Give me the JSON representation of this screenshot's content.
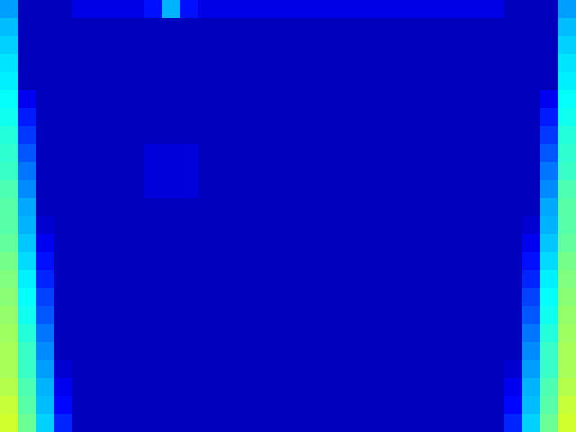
{
  "chart_data": {
    "type": "heatmap",
    "tick_labels": false,
    "zlim": [
      0,
      1
    ],
    "cells": [
      [
        0.28,
        0.06,
        0.06,
        0.06,
        0.1,
        0.1,
        0.1,
        0.1,
        0.14,
        0.3,
        0.14,
        0.1,
        0.1,
        0.1,
        0.1,
        0.1,
        0.1,
        0.1,
        0.1,
        0.1,
        0.1,
        0.1,
        0.1,
        0.1,
        0.1,
        0.1,
        0.1,
        0.1,
        0.06,
        0.06,
        0.06,
        0.28
      ],
      [
        0.31,
        0.06,
        0.06,
        0.06,
        0.06,
        0.06,
        0.06,
        0.06,
        0.06,
        0.06,
        0.06,
        0.06,
        0.06,
        0.06,
        0.06,
        0.06,
        0.06,
        0.06,
        0.06,
        0.06,
        0.06,
        0.06,
        0.06,
        0.06,
        0.06,
        0.06,
        0.06,
        0.06,
        0.06,
        0.06,
        0.06,
        0.31
      ],
      [
        0.33,
        0.06,
        0.06,
        0.06,
        0.06,
        0.06,
        0.06,
        0.06,
        0.06,
        0.06,
        0.06,
        0.06,
        0.06,
        0.06,
        0.06,
        0.06,
        0.06,
        0.06,
        0.06,
        0.06,
        0.06,
        0.06,
        0.06,
        0.06,
        0.06,
        0.06,
        0.06,
        0.06,
        0.06,
        0.06,
        0.06,
        0.33
      ],
      [
        0.35,
        0.06,
        0.06,
        0.06,
        0.06,
        0.06,
        0.06,
        0.06,
        0.06,
        0.06,
        0.06,
        0.06,
        0.06,
        0.06,
        0.06,
        0.06,
        0.06,
        0.06,
        0.06,
        0.06,
        0.06,
        0.06,
        0.06,
        0.06,
        0.06,
        0.06,
        0.06,
        0.06,
        0.06,
        0.06,
        0.06,
        0.35
      ],
      [
        0.36,
        0.06,
        0.06,
        0.06,
        0.06,
        0.06,
        0.06,
        0.06,
        0.06,
        0.06,
        0.06,
        0.06,
        0.06,
        0.06,
        0.06,
        0.06,
        0.06,
        0.06,
        0.06,
        0.06,
        0.06,
        0.06,
        0.06,
        0.06,
        0.06,
        0.06,
        0.06,
        0.06,
        0.06,
        0.06,
        0.06,
        0.36
      ],
      [
        0.38,
        0.11,
        0.06,
        0.06,
        0.06,
        0.06,
        0.06,
        0.06,
        0.06,
        0.06,
        0.06,
        0.06,
        0.06,
        0.06,
        0.06,
        0.06,
        0.06,
        0.06,
        0.06,
        0.06,
        0.06,
        0.06,
        0.06,
        0.06,
        0.06,
        0.06,
        0.06,
        0.06,
        0.06,
        0.06,
        0.11,
        0.38
      ],
      [
        0.39,
        0.15,
        0.06,
        0.06,
        0.06,
        0.06,
        0.06,
        0.06,
        0.06,
        0.06,
        0.06,
        0.06,
        0.06,
        0.06,
        0.06,
        0.06,
        0.06,
        0.06,
        0.06,
        0.06,
        0.06,
        0.06,
        0.06,
        0.06,
        0.06,
        0.06,
        0.06,
        0.06,
        0.06,
        0.06,
        0.15,
        0.39
      ],
      [
        0.41,
        0.18,
        0.06,
        0.06,
        0.06,
        0.06,
        0.06,
        0.06,
        0.06,
        0.06,
        0.06,
        0.06,
        0.06,
        0.06,
        0.06,
        0.06,
        0.06,
        0.06,
        0.06,
        0.06,
        0.06,
        0.06,
        0.06,
        0.06,
        0.06,
        0.06,
        0.06,
        0.06,
        0.06,
        0.06,
        0.18,
        0.41
      ],
      [
        0.42,
        0.21,
        0.06,
        0.06,
        0.06,
        0.06,
        0.06,
        0.06,
        0.09,
        0.09,
        0.09,
        0.06,
        0.06,
        0.06,
        0.06,
        0.06,
        0.06,
        0.06,
        0.06,
        0.06,
        0.06,
        0.06,
        0.06,
        0.06,
        0.06,
        0.06,
        0.06,
        0.06,
        0.06,
        0.06,
        0.21,
        0.42
      ],
      [
        0.43,
        0.24,
        0.06,
        0.06,
        0.06,
        0.06,
        0.06,
        0.06,
        0.09,
        0.09,
        0.09,
        0.06,
        0.06,
        0.06,
        0.06,
        0.06,
        0.06,
        0.06,
        0.06,
        0.06,
        0.06,
        0.06,
        0.06,
        0.06,
        0.06,
        0.06,
        0.06,
        0.06,
        0.06,
        0.06,
        0.24,
        0.43
      ],
      [
        0.45,
        0.26,
        0.06,
        0.06,
        0.06,
        0.06,
        0.06,
        0.06,
        0.09,
        0.09,
        0.09,
        0.06,
        0.06,
        0.06,
        0.06,
        0.06,
        0.06,
        0.06,
        0.06,
        0.06,
        0.06,
        0.06,
        0.06,
        0.06,
        0.06,
        0.06,
        0.06,
        0.06,
        0.06,
        0.06,
        0.26,
        0.45
      ],
      [
        0.46,
        0.29,
        0.06,
        0.06,
        0.06,
        0.06,
        0.06,
        0.06,
        0.06,
        0.06,
        0.06,
        0.06,
        0.06,
        0.06,
        0.06,
        0.06,
        0.06,
        0.06,
        0.06,
        0.06,
        0.06,
        0.06,
        0.06,
        0.06,
        0.06,
        0.06,
        0.06,
        0.06,
        0.06,
        0.06,
        0.29,
        0.46
      ],
      [
        0.46,
        0.3,
        0.08,
        0.06,
        0.06,
        0.06,
        0.06,
        0.06,
        0.06,
        0.06,
        0.06,
        0.06,
        0.06,
        0.06,
        0.06,
        0.06,
        0.06,
        0.06,
        0.06,
        0.06,
        0.06,
        0.06,
        0.06,
        0.06,
        0.06,
        0.06,
        0.06,
        0.06,
        0.06,
        0.08,
        0.3,
        0.46
      ],
      [
        0.47,
        0.32,
        0.11,
        0.06,
        0.06,
        0.06,
        0.06,
        0.06,
        0.06,
        0.06,
        0.06,
        0.06,
        0.06,
        0.06,
        0.06,
        0.06,
        0.06,
        0.06,
        0.06,
        0.06,
        0.06,
        0.06,
        0.06,
        0.06,
        0.06,
        0.06,
        0.06,
        0.06,
        0.06,
        0.11,
        0.32,
        0.47
      ],
      [
        0.49,
        0.34,
        0.14,
        0.06,
        0.06,
        0.06,
        0.06,
        0.06,
        0.06,
        0.06,
        0.06,
        0.06,
        0.06,
        0.06,
        0.06,
        0.06,
        0.06,
        0.06,
        0.06,
        0.06,
        0.06,
        0.06,
        0.06,
        0.06,
        0.06,
        0.06,
        0.06,
        0.06,
        0.06,
        0.14,
        0.34,
        0.49
      ],
      [
        0.5,
        0.36,
        0.16,
        0.06,
        0.06,
        0.06,
        0.06,
        0.06,
        0.06,
        0.06,
        0.06,
        0.06,
        0.06,
        0.06,
        0.06,
        0.06,
        0.06,
        0.06,
        0.06,
        0.06,
        0.06,
        0.06,
        0.06,
        0.06,
        0.06,
        0.06,
        0.06,
        0.06,
        0.06,
        0.16,
        0.36,
        0.5
      ],
      [
        0.51,
        0.38,
        0.19,
        0.06,
        0.06,
        0.06,
        0.06,
        0.06,
        0.06,
        0.06,
        0.06,
        0.06,
        0.06,
        0.06,
        0.06,
        0.06,
        0.06,
        0.06,
        0.06,
        0.06,
        0.06,
        0.06,
        0.06,
        0.06,
        0.06,
        0.06,
        0.06,
        0.06,
        0.06,
        0.19,
        0.38,
        0.51
      ],
      [
        0.52,
        0.39,
        0.21,
        0.06,
        0.06,
        0.06,
        0.06,
        0.06,
        0.06,
        0.06,
        0.06,
        0.06,
        0.06,
        0.06,
        0.06,
        0.06,
        0.06,
        0.06,
        0.06,
        0.06,
        0.06,
        0.06,
        0.06,
        0.06,
        0.06,
        0.06,
        0.06,
        0.06,
        0.06,
        0.21,
        0.39,
        0.52
      ],
      [
        0.53,
        0.41,
        0.24,
        0.06,
        0.06,
        0.06,
        0.06,
        0.06,
        0.06,
        0.06,
        0.06,
        0.06,
        0.06,
        0.06,
        0.06,
        0.06,
        0.06,
        0.06,
        0.06,
        0.06,
        0.06,
        0.06,
        0.06,
        0.06,
        0.06,
        0.06,
        0.06,
        0.06,
        0.06,
        0.24,
        0.41,
        0.53
      ],
      [
        0.54,
        0.43,
        0.26,
        0.06,
        0.06,
        0.06,
        0.06,
        0.06,
        0.06,
        0.06,
        0.06,
        0.06,
        0.06,
        0.06,
        0.06,
        0.06,
        0.06,
        0.06,
        0.06,
        0.06,
        0.06,
        0.06,
        0.06,
        0.06,
        0.06,
        0.06,
        0.06,
        0.06,
        0.06,
        0.26,
        0.43,
        0.54
      ],
      [
        0.54,
        0.43,
        0.28,
        0.08,
        0.06,
        0.06,
        0.06,
        0.06,
        0.06,
        0.06,
        0.06,
        0.06,
        0.06,
        0.06,
        0.06,
        0.06,
        0.06,
        0.06,
        0.06,
        0.06,
        0.06,
        0.06,
        0.06,
        0.06,
        0.06,
        0.06,
        0.06,
        0.06,
        0.08,
        0.28,
        0.43,
        0.54
      ],
      [
        0.55,
        0.45,
        0.3,
        0.11,
        0.06,
        0.06,
        0.06,
        0.06,
        0.06,
        0.06,
        0.06,
        0.06,
        0.06,
        0.06,
        0.06,
        0.06,
        0.06,
        0.06,
        0.06,
        0.06,
        0.06,
        0.06,
        0.06,
        0.06,
        0.06,
        0.06,
        0.06,
        0.06,
        0.11,
        0.3,
        0.45,
        0.55
      ],
      [
        0.57,
        0.46,
        0.31,
        0.13,
        0.06,
        0.06,
        0.06,
        0.06,
        0.06,
        0.06,
        0.06,
        0.06,
        0.06,
        0.06,
        0.06,
        0.06,
        0.06,
        0.06,
        0.06,
        0.06,
        0.06,
        0.06,
        0.06,
        0.06,
        0.06,
        0.06,
        0.06,
        0.06,
        0.13,
        0.31,
        0.46,
        0.57
      ],
      [
        0.58,
        0.48,
        0.33,
        0.16,
        0.06,
        0.06,
        0.06,
        0.06,
        0.06,
        0.06,
        0.06,
        0.06,
        0.06,
        0.06,
        0.06,
        0.06,
        0.06,
        0.06,
        0.06,
        0.06,
        0.06,
        0.06,
        0.06,
        0.06,
        0.06,
        0.06,
        0.06,
        0.06,
        0.16,
        0.33,
        0.48,
        0.58
      ]
    ]
  }
}
